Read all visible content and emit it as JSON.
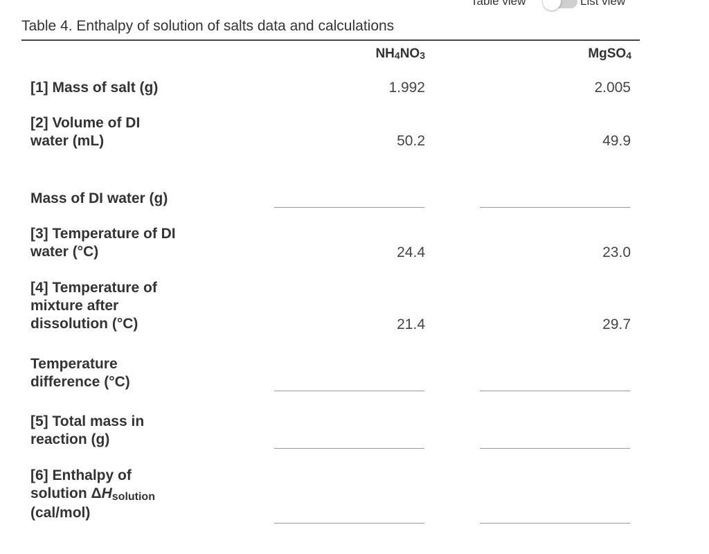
{
  "toggle": {
    "left_label": "Table view",
    "right_label": "List view"
  },
  "table": {
    "caption": "Table 4. Enthalpy of solution of salts data and calculations",
    "columns": [
      {
        "base": "NH",
        "sub1": "4",
        "mid": "NO",
        "sub2": "3"
      },
      {
        "base": "MgSO",
        "sub1": "4",
        "mid": "",
        "sub2": ""
      }
    ],
    "rows": [
      {
        "label_lines": [
          "[1] Mass of salt (g)"
        ],
        "values": [
          "1.992",
          "2.005"
        ]
      },
      {
        "label_lines": [
          "[2] Volume of DI",
          "water (mL)"
        ],
        "values": [
          "50.2",
          "49.9"
        ]
      },
      {
        "label_lines": [
          "Mass of DI water (g)"
        ],
        "values": [
          "",
          ""
        ]
      },
      {
        "label_lines": [
          "[3] Temperature of DI",
          "water (°C)"
        ],
        "values": [
          "24.4",
          "23.0"
        ]
      },
      {
        "label_lines": [
          "[4] Temperature of",
          "mixture after",
          "dissolution (°C)"
        ],
        "values": [
          "21.4",
          "29.7"
        ]
      },
      {
        "label_lines": [
          "Temperature",
          "difference (°C)"
        ],
        "values": [
          "",
          ""
        ]
      },
      {
        "label_lines": [
          "[5] Total mass in",
          "reaction (g)"
        ],
        "values": [
          "",
          ""
        ]
      },
      {
        "label_parts": {
          "line1": "[6] Enthalpy of",
          "line2_prefix": "solution Δ",
          "line2_var": "H",
          "line2_sub": "solution",
          "line3": "(cal/mol)"
        },
        "values": [
          "",
          ""
        ]
      }
    ]
  }
}
